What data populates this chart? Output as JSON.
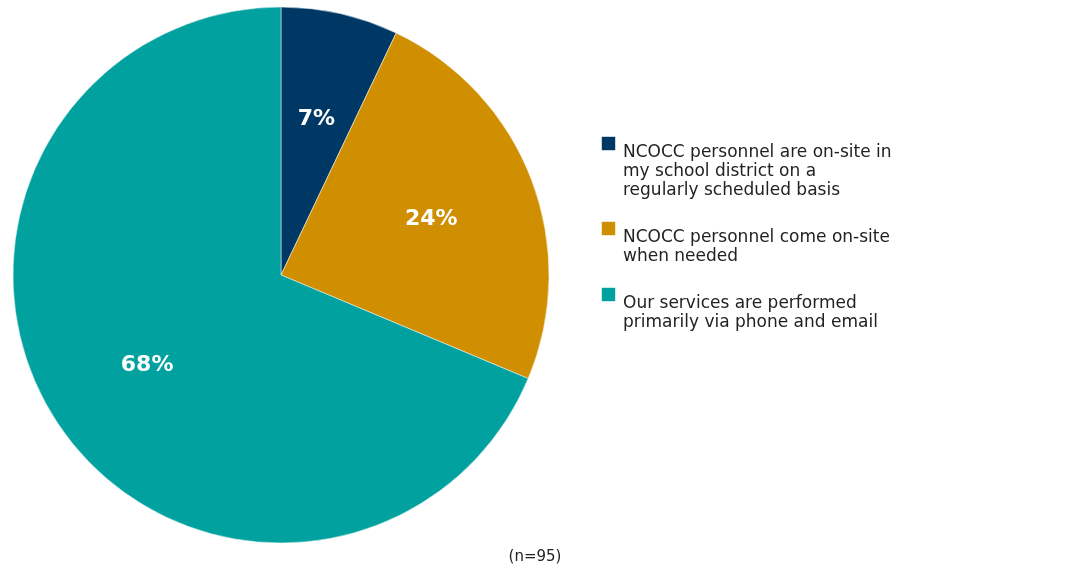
{
  "chart_data": {
    "type": "pie",
    "categories": [
      "NCOCC personnel are on-site in my school district on a regularly scheduled basis",
      "NCOCC personnel come on-site when needed",
      "Our services are performed primarily via phone and email"
    ],
    "values": [
      7,
      24,
      68
    ],
    "colors": [
      "#003865",
      "#d08f00",
      "#00a19f"
    ],
    "value_labels": [
      "7%",
      "24%",
      "68%"
    ],
    "legend": "right",
    "annotations": [
      "(n=95)"
    ]
  }
}
